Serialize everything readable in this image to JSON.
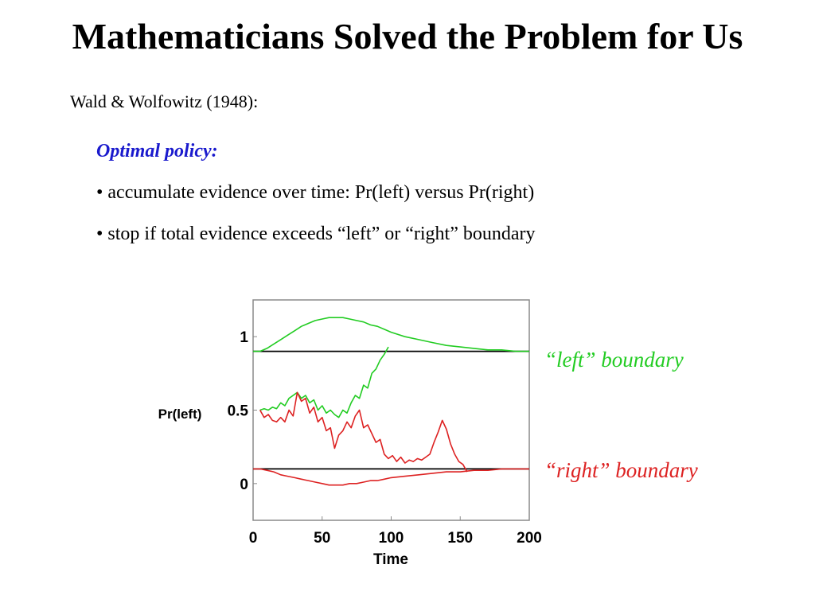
{
  "slide": {
    "title": "Mathematicians Solved the Problem for Us",
    "citation": "Wald & Wolfowitz (1948):",
    "policy_heading": "Optimal policy:",
    "bullets": [
      "• accumulate evidence over time: Pr(left) versus Pr(right)",
      "• stop if total evidence exceeds “left” or “right” boundary"
    ],
    "accent_color": "#1a1acd"
  },
  "chart_data": {
    "type": "line",
    "xlabel": "Time",
    "ylabel": "Pr(left)",
    "xlim": [
      0,
      200
    ],
    "ylim": [
      -0.25,
      1.25
    ],
    "xticks": [
      0,
      50,
      100,
      150,
      200
    ],
    "yticks": [
      0,
      0.5,
      1
    ],
    "ytick_labels": [
      "0",
      "0.5",
      "1"
    ],
    "grid": false,
    "annotations": [
      {
        "text": "“left” boundary",
        "color": "#22cc22"
      },
      {
        "text": "“right” boundary",
        "color": "#dd2222"
      }
    ],
    "boundaries": [
      {
        "x": [
          0,
          200
        ],
        "y": [
          0.9,
          0.9
        ],
        "color": "#000000"
      },
      {
        "x": [
          0,
          200
        ],
        "y": [
          0.1,
          0.1
        ],
        "color": "#000000"
      }
    ],
    "series": [
      {
        "color": "#22cc22",
        "x": [
          0,
          5,
          10,
          15,
          20,
          25,
          30,
          35,
          40,
          45,
          50,
          55,
          60,
          65,
          70,
          75,
          80,
          85,
          90,
          95,
          100,
          110,
          120,
          130,
          140,
          150,
          160,
          170,
          180,
          190,
          200
        ],
        "y": [
          0.9,
          0.9,
          0.92,
          0.95,
          0.98,
          1.01,
          1.04,
          1.07,
          1.09,
          1.11,
          1.12,
          1.13,
          1.13,
          1.13,
          1.12,
          1.11,
          1.1,
          1.08,
          1.07,
          1.05,
          1.03,
          1.0,
          0.98,
          0.96,
          0.94,
          0.93,
          0.92,
          0.91,
          0.91,
          0.9,
          0.9
        ]
      },
      {
        "color": "#22cc22",
        "x": [
          5,
          8,
          11,
          14,
          17,
          20,
          23,
          26,
          29,
          32,
          35,
          38,
          41,
          44,
          47,
          50,
          53,
          56,
          59,
          62,
          65,
          68,
          71,
          74,
          77,
          80,
          83,
          86,
          89,
          92,
          95,
          98
        ],
        "y": [
          0.5,
          0.51,
          0.5,
          0.52,
          0.51,
          0.55,
          0.53,
          0.58,
          0.6,
          0.62,
          0.58,
          0.6,
          0.55,
          0.57,
          0.5,
          0.53,
          0.48,
          0.5,
          0.47,
          0.45,
          0.5,
          0.48,
          0.55,
          0.6,
          0.58,
          0.67,
          0.65,
          0.75,
          0.78,
          0.84,
          0.88,
          0.93
        ]
      },
      {
        "color": "#dd2222",
        "x": [
          0,
          5,
          10,
          15,
          20,
          25,
          30,
          35,
          40,
          45,
          50,
          55,
          60,
          65,
          70,
          75,
          80,
          85,
          90,
          95,
          100,
          110,
          120,
          130,
          140,
          150,
          160,
          170,
          180,
          190,
          200
        ],
        "y": [
          0.1,
          0.1,
          0.09,
          0.08,
          0.06,
          0.05,
          0.04,
          0.03,
          0.02,
          0.01,
          0.0,
          -0.01,
          -0.01,
          -0.01,
          0.0,
          0.0,
          0.01,
          0.02,
          0.02,
          0.03,
          0.04,
          0.05,
          0.06,
          0.07,
          0.08,
          0.08,
          0.09,
          0.09,
          0.1,
          0.1,
          0.1
        ]
      },
      {
        "color": "#dd2222",
        "x": [
          5,
          8,
          11,
          14,
          17,
          20,
          23,
          26,
          29,
          32,
          35,
          38,
          41,
          44,
          47,
          50,
          53,
          56,
          59,
          62,
          65,
          68,
          71,
          74,
          77,
          80,
          83,
          86,
          89,
          92,
          95,
          98,
          101,
          104,
          107,
          110,
          113,
          116,
          119,
          122,
          125,
          128,
          131,
          134,
          137,
          140,
          143,
          146,
          149,
          152,
          155
        ],
        "y": [
          0.5,
          0.45,
          0.47,
          0.43,
          0.42,
          0.45,
          0.42,
          0.5,
          0.46,
          0.62,
          0.56,
          0.58,
          0.48,
          0.52,
          0.42,
          0.45,
          0.36,
          0.38,
          0.24,
          0.33,
          0.36,
          0.42,
          0.38,
          0.46,
          0.5,
          0.38,
          0.4,
          0.34,
          0.28,
          0.3,
          0.2,
          0.17,
          0.19,
          0.15,
          0.18,
          0.14,
          0.16,
          0.15,
          0.17,
          0.16,
          0.18,
          0.2,
          0.28,
          0.35,
          0.43,
          0.37,
          0.27,
          0.2,
          0.15,
          0.13,
          0.08
        ]
      }
    ]
  }
}
